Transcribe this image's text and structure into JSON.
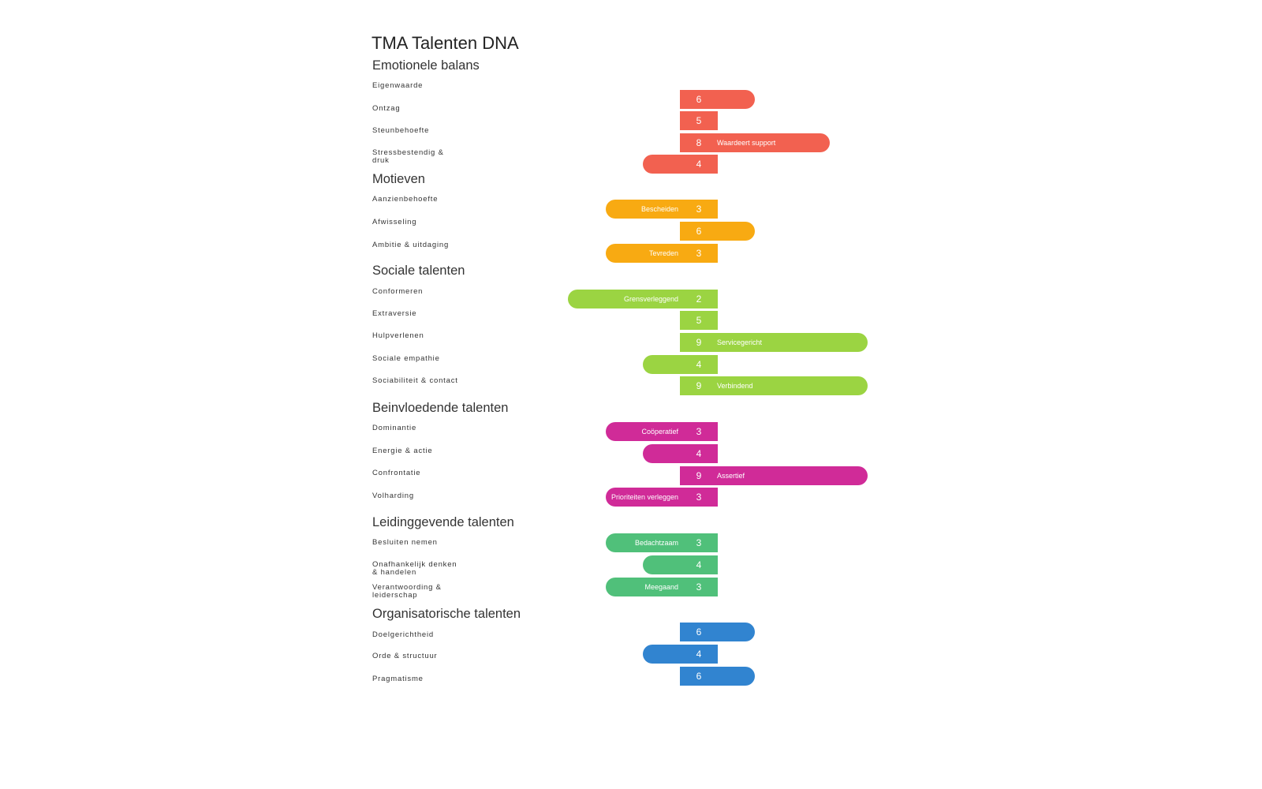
{
  "chart_data": {
    "type": "bar",
    "title": "TMA Talenten DNA",
    "orientation": "horizontal",
    "scale": [
      1,
      10
    ],
    "midpoint": 5,
    "sections": [
      {
        "name": "Emotionele balans",
        "color": "#f26150",
        "items": [
          {
            "label": "Eigenwaarde",
            "value": 6,
            "tag": ""
          },
          {
            "label": "Ontzag",
            "value": 5,
            "tag": ""
          },
          {
            "label": "Steunbehoefte",
            "value": 8,
            "tag": "Waardeert support"
          },
          {
            "label": "Stressbestendig & druk",
            "value": 4,
            "tag": ""
          }
        ]
      },
      {
        "name": "Motieven",
        "color": "#f8aa12",
        "items": [
          {
            "label": "Aanzienbehoefte",
            "value": 3,
            "tag": "Bescheiden"
          },
          {
            "label": "Afwisseling",
            "value": 6,
            "tag": ""
          },
          {
            "label": "Ambitie & uitdaging",
            "value": 3,
            "tag": "Tevreden"
          }
        ]
      },
      {
        "name": "Sociale talenten",
        "color": "#9bd442",
        "items": [
          {
            "label": "Conformeren",
            "value": 2,
            "tag": "Grensverleggend"
          },
          {
            "label": "Extraversie",
            "value": 5,
            "tag": ""
          },
          {
            "label": "Hulpverlenen",
            "value": 9,
            "tag": "Servicegericht"
          },
          {
            "label": "Sociale empathie",
            "value": 4,
            "tag": ""
          },
          {
            "label": "Sociabiliteit & contact",
            "value": 9,
            "tag": "Verbindend"
          }
        ]
      },
      {
        "name": "Beinvloedende talenten",
        "color": "#d02b98",
        "items": [
          {
            "label": "Dominantie",
            "value": 3,
            "tag": "Coöperatief"
          },
          {
            "label": "Energie & actie",
            "value": 4,
            "tag": ""
          },
          {
            "label": "Confrontatie",
            "value": 9,
            "tag": "Assertief"
          },
          {
            "label": "Volharding",
            "value": 3,
            "tag": "Prioriteiten verleggen"
          }
        ]
      },
      {
        "name": "Leidinggevende talenten",
        "color": "#50c07a",
        "items": [
          {
            "label": "Besluiten nemen",
            "value": 3,
            "tag": "Bedachtzaam"
          },
          {
            "label": "Onafhankelijk denken & handelen",
            "value": 4,
            "tag": ""
          },
          {
            "label": "Verantwoording & leiderschap",
            "value": 3,
            "tag": "Meegaand"
          }
        ]
      },
      {
        "name": "Organisatorische talenten",
        "color": "#3184d0",
        "items": [
          {
            "label": "Doelgerichtheid",
            "value": 6,
            "tag": ""
          },
          {
            "label": "Orde & structuur",
            "value": 4,
            "tag": ""
          },
          {
            "label": "Pragmatisme",
            "value": 6,
            "tag": ""
          }
        ]
      }
    ]
  }
}
